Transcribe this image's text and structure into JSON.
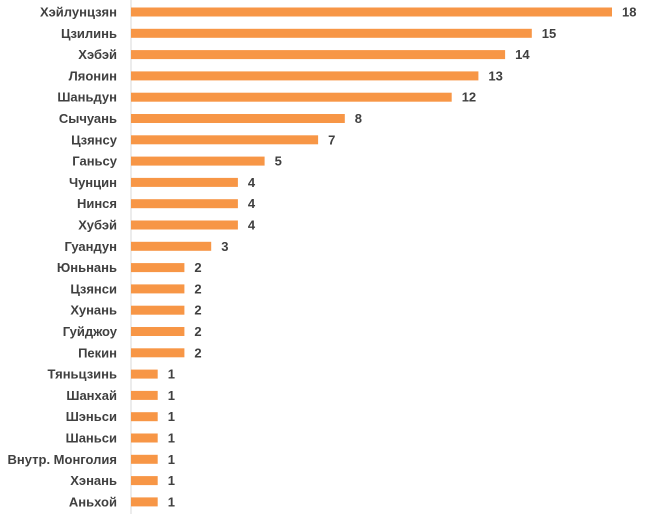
{
  "chart_data": {
    "type": "bar",
    "orientation": "horizontal",
    "title": "",
    "xlabel": "",
    "ylabel": "",
    "bar_color": "#F79646",
    "axis_color": "#D9D9D9",
    "grid": false,
    "legend": "none",
    "categories": [
      "Хэйлунцзян",
      "Цзилинь",
      "Хэбэй",
      "Ляонин",
      "Шаньдун",
      "Сычуань",
      "Цзянсу",
      "Ганьсу",
      "Чунцин",
      "Нинся",
      "Хубэй",
      "Гуандун",
      "Юньнань",
      "Цзянси",
      "Хунань",
      "Гуйджоу",
      "Пекин",
      "Тяньцзинь",
      "Шанхай",
      "Шэньси",
      "Шаньси",
      "Внутр. Монголия",
      "Хэнань",
      "Аньхой"
    ],
    "values": [
      18,
      15,
      14,
      13,
      12,
      8,
      7,
      5,
      4,
      4,
      4,
      3,
      2,
      2,
      2,
      2,
      2,
      1,
      1,
      1,
      1,
      1,
      1,
      1
    ],
    "xlim": [
      0,
      18
    ]
  }
}
